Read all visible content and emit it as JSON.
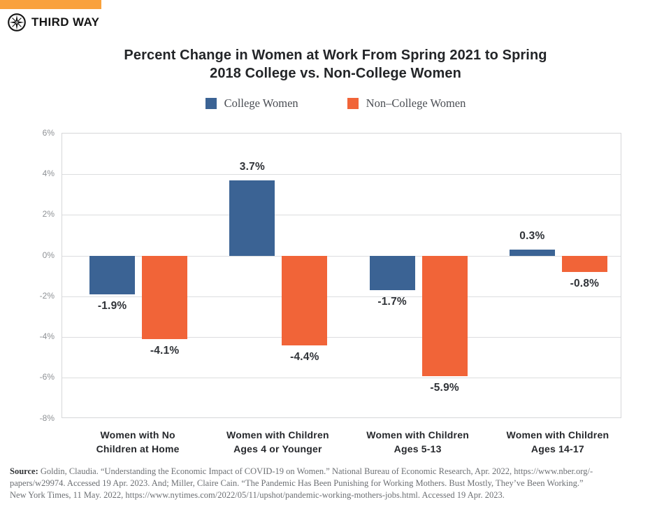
{
  "brand": {
    "logo_text": "THIRD WAY",
    "accent_color": "#F9A13C"
  },
  "chart_data": {
    "type": "bar",
    "title": "Percent Change in Women at Work From Spring 2021 to Spring\n2018 College vs. Non-College Women",
    "categories": [
      "Women with No\nChildren at Home",
      "Women with Children\nAges 4 or Younger",
      "Women with Children\nAges 5-13",
      "Women with Children\nAges 14-17"
    ],
    "series": [
      {
        "name": "College Women",
        "color": "#3B6394",
        "values": [
          -1.9,
          3.7,
          -1.7,
          0.3
        ]
      },
      {
        "name": "Non–College Women",
        "color": "#F16438",
        "values": [
          -4.1,
          -4.4,
          -5.9,
          -0.8
        ]
      }
    ],
    "ylim": [
      -8,
      6
    ],
    "ytick_step": 2,
    "ytick_suffix": "%",
    "grid": true,
    "legend_position": "top",
    "value_label_format": "signed percent, one decimal"
  },
  "source": {
    "label": "Source:",
    "lines": [
      "Goldin, Claudia. “Understanding the Economic Impact of COVID-19 on Women.” National Bureau of Economic Research, Apr. 2022, https://www.nber.org/-",
      "papers/w29974. Accessed 19 Apr. 2023. And; Miller, Claire Cain. “The Pandemic Has Been Punishing for Working Mothers. Bust Mostly, They’ve Been Working.”",
      "New York Times, 11 May. 2022, https://www.nytimes.com/2022/05/11/upshot/pandemic-working-mothers-jobs.html. Accessed 19 Apr. 2023."
    ]
  }
}
